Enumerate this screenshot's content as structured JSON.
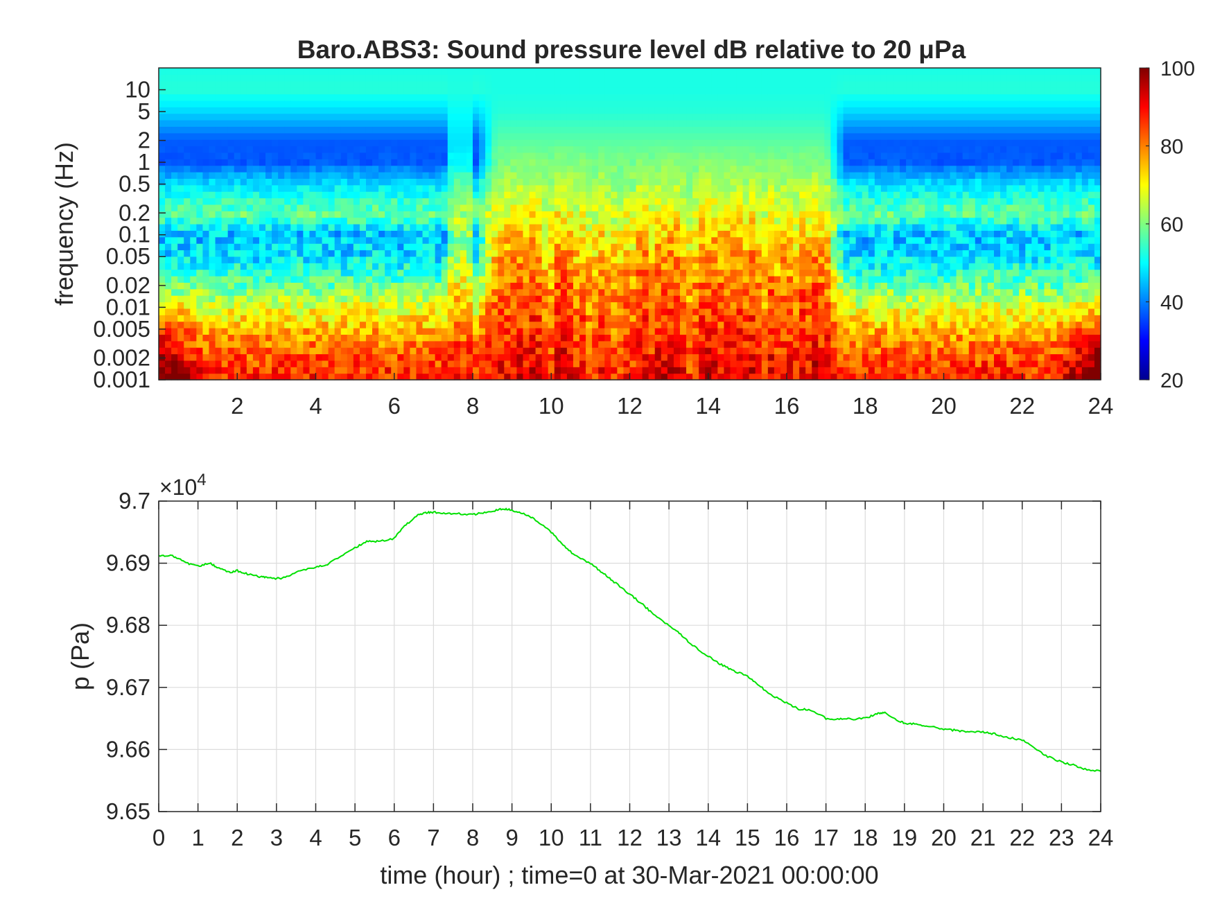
{
  "chart_data": [
    {
      "type": "heatmap",
      "title": "Baro.ABS3: Sound pressure level dB relative to 20 μPa",
      "ylabel": "frequency (Hz)",
      "xlabel": "",
      "x_ticks": [
        "2",
        "4",
        "6",
        "8",
        "10",
        "12",
        "14",
        "16",
        "18",
        "20",
        "22",
        "24"
      ],
      "x_tick_values": [
        2,
        4,
        6,
        8,
        10,
        12,
        14,
        16,
        18,
        20,
        22,
        24
      ],
      "xlim": [
        0,
        24
      ],
      "y_scale": "log",
      "ylim": [
        0.001,
        20
      ],
      "y_ticks": [
        "0.001",
        "0.002",
        "0.005",
        "0.01",
        "0.02",
        "0.05",
        "0.1",
        "0.2",
        "0.5",
        "1",
        "2",
        "5",
        "10"
      ],
      "y_tick_values": [
        0.001,
        0.002,
        0.005,
        0.01,
        0.02,
        0.05,
        0.1,
        0.2,
        0.5,
        1,
        2,
        5,
        10
      ],
      "colorbar": {
        "min": 20,
        "max": 100,
        "ticks": [
          "20",
          "40",
          "60",
          "80",
          "100"
        ],
        "tick_values": [
          20,
          40,
          60,
          80,
          100
        ],
        "colormap": "jet"
      },
      "bands": {
        "freq": [
          0.001,
          0.002,
          0.005,
          0.01,
          0.02,
          0.05,
          0.1,
          0.2,
          0.5,
          1,
          2,
          5,
          10,
          20
        ],
        "level_quiet_period": [
          88,
          84,
          76,
          68,
          58,
          48,
          45,
          58,
          48,
          37,
          37,
          47,
          53,
          52
        ],
        "level_active_period": [
          90,
          88,
          84,
          82,
          80,
          76,
          72,
          68,
          63,
          60,
          57,
          53,
          52,
          52
        ],
        "active_period_hours": [
          8.6,
          17
        ]
      }
    },
    {
      "type": "line",
      "title": "",
      "xlabel": "time (hour) ; time=0 at 30-Mar-2021 00:00:00",
      "ylabel": "p (Pa)",
      "y_exponent_label": "×10",
      "y_exponent": "4",
      "xlim": [
        0,
        24
      ],
      "ylim": [
        96500,
        97000
      ],
      "grid": true,
      "line_color": "#00e000",
      "x_ticks": [
        "0",
        "1",
        "2",
        "3",
        "4",
        "5",
        "6",
        "7",
        "8",
        "9",
        "10",
        "11",
        "12",
        "13",
        "14",
        "15",
        "16",
        "17",
        "18",
        "19",
        "20",
        "21",
        "22",
        "23",
        "24"
      ],
      "x_tick_values": [
        0,
        1,
        2,
        3,
        4,
        5,
        6,
        7,
        8,
        9,
        10,
        11,
        12,
        13,
        14,
        15,
        16,
        17,
        18,
        19,
        20,
        21,
        22,
        23,
        24
      ],
      "y_ticks": [
        "9.65",
        "9.66",
        "9.67",
        "9.68",
        "9.69",
        "9.7"
      ],
      "y_tick_values": [
        96500,
        96600,
        96700,
        96800,
        96900,
        97000
      ],
      "series": [
        {
          "x": [
            0,
            0.3,
            0.5,
            0.7,
            1,
            1.3,
            1.5,
            1.8,
            2,
            2.3,
            2.6,
            2.8,
            3,
            3.3,
            3.6,
            4,
            4.3,
            4.6,
            5,
            5.3,
            5.6,
            6,
            6.3,
            6.6,
            6.8,
            7,
            7.3,
            7.6,
            8,
            8.3,
            8.6,
            8.8,
            9,
            9.3,
            9.6,
            10,
            10.3,
            10.6,
            11,
            11.3,
            11.6,
            12,
            12.3,
            12.6,
            13,
            13.3,
            13.6,
            14,
            14.3,
            14.6,
            15,
            15.3,
            15.6,
            16,
            16.3,
            16.6,
            17,
            17.3,
            17.6,
            18,
            18.3,
            18.5,
            18.8,
            19,
            19.3,
            19.6,
            20,
            20.3,
            20.6,
            21,
            21.3,
            21.6,
            22,
            22.3,
            22.6,
            23,
            23.3,
            23.6,
            24
          ],
          "y": [
            96912,
            96913,
            96908,
            96900,
            96895,
            96900,
            96893,
            96885,
            96888,
            96882,
            96878,
            96876,
            96875,
            96878,
            96888,
            96893,
            96898,
            96910,
            96925,
            96935,
            96935,
            96940,
            96962,
            96978,
            96981,
            96982,
            96980,
            96980,
            96978,
            96982,
            96985,
            96988,
            96985,
            96980,
            96970,
            96950,
            96930,
            96912,
            96900,
            96885,
            96870,
            96850,
            96835,
            96818,
            96800,
            96785,
            96768,
            96750,
            96738,
            96728,
            96718,
            96703,
            96688,
            96675,
            96665,
            96664,
            96650,
            96649,
            96649,
            96650,
            96658,
            96660,
            96648,
            96642,
            96641,
            96638,
            96632,
            96631,
            96628,
            96628,
            96625,
            96620,
            96615,
            96603,
            96590,
            96580,
            96575,
            96568,
            96565
          ]
        }
      ]
    }
  ]
}
